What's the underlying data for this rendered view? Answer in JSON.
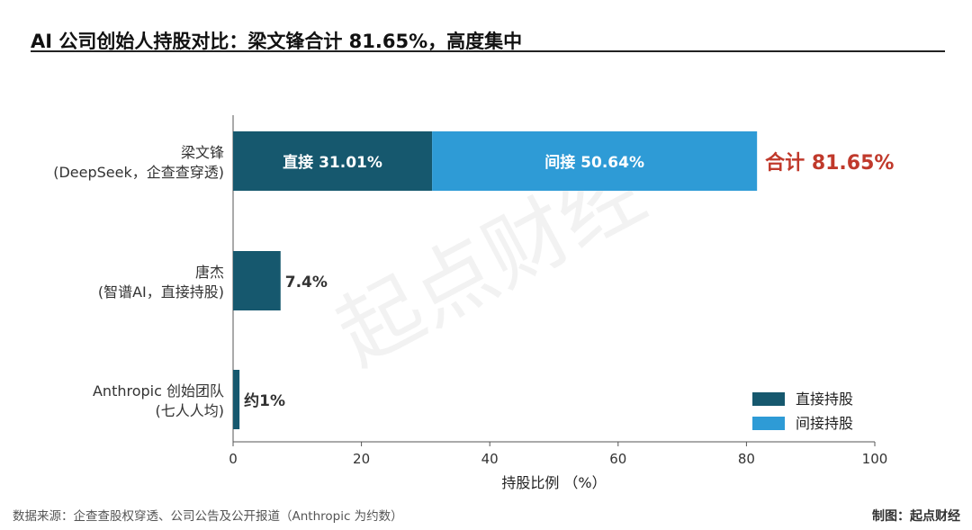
{
  "title": "AI 公司创始人持股对比：梁文锋合计 81.65%，高度集中",
  "watermark": "起点财经",
  "footer": {
    "source": "数据来源：企查查股权穿透、公司公告及公开报道（Anthropic 为约数）",
    "credit": "制图：起点财经"
  },
  "colors": {
    "direct": "#16586e",
    "indirect": "#2e9bd6",
    "total_label": "#c0392b"
  },
  "chart_data": {
    "type": "bar",
    "orientation": "horizontal",
    "stacked": true,
    "categories": [
      {
        "line1": "梁文锋",
        "line2": "(DeepSeek，企查查穿透)"
      },
      {
        "line1": "唐杰",
        "line2": "(智谱AI，直接持股)"
      },
      {
        "line1": "Anthropic 创始团队",
        "line2": "(七人人均)"
      }
    ],
    "series": [
      {
        "name": "直接持股",
        "values": [
          31.01,
          7.4,
          1
        ]
      },
      {
        "name": "间接持股",
        "values": [
          50.64,
          0,
          0
        ]
      }
    ],
    "bar_labels": [
      {
        "inside": [
          "直接 31.01%",
          "间接 50.64%"
        ],
        "outside": "合计 81.65%",
        "outside_highlight": true
      },
      {
        "inside": [],
        "outside": "7.4%",
        "outside_highlight": false
      },
      {
        "inside": [],
        "outside": "约1%",
        "outside_highlight": false
      }
    ],
    "xlabel": "持股比例 （%）",
    "ylabel": "",
    "xlim": [
      0,
      100
    ],
    "xticks": [
      0,
      20,
      40,
      60,
      80,
      100
    ],
    "grid": false,
    "legend": {
      "position": "bottom-right",
      "entries": [
        "直接持股",
        "间接持股"
      ]
    }
  }
}
